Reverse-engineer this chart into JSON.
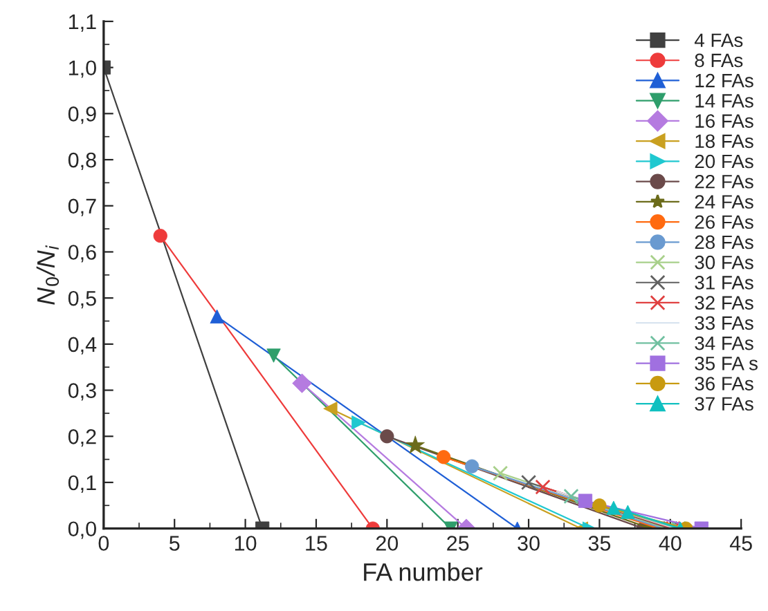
{
  "chart_data": {
    "type": "line",
    "xlabel": "FA number",
    "ylabel": "N$_{0}$/N$_{i}$",
    "xlim": [
      0,
      45
    ],
    "xticks": [
      0,
      5,
      10,
      15,
      20,
      25,
      30,
      35,
      40,
      45
    ],
    "ylim": [
      0,
      1.1
    ],
    "yticks": [
      {
        "value": 0,
        "label": "0,0"
      },
      {
        "value": 0.1,
        "label": "0,1"
      },
      {
        "value": 0.2,
        "label": "0,2"
      },
      {
        "value": 0.3,
        "label": "0,3"
      },
      {
        "value": 0.4,
        "label": "0,4"
      },
      {
        "value": 0.5,
        "label": "0,5"
      },
      {
        "value": 0.6,
        "label": "0,6"
      },
      {
        "value": 0.7,
        "label": "0,7"
      },
      {
        "value": 0.8,
        "label": "0,8"
      },
      {
        "value": 0.9,
        "label": "0,9"
      },
      {
        "value": 1.0,
        "label": "1,0"
      },
      {
        "value": 1.1,
        "label": "1,1"
      }
    ],
    "grid": false,
    "legend": "top right",
    "series": [
      {
        "name": "4 FAs",
        "color": "#404040",
        "marker": "square",
        "x": [
          0,
          11.2
        ],
        "values": [
          1.0,
          0
        ]
      },
      {
        "name": "8 FAs",
        "color": "#ee3b3b",
        "marker": "circle",
        "x": [
          4,
          19.0
        ],
        "values": [
          0.635,
          0
        ]
      },
      {
        "name": "12 FAs",
        "color": "#1f5fd6",
        "marker": "triangle",
        "x": [
          8,
          29.2
        ],
        "values": [
          0.46,
          0
        ]
      },
      {
        "name": "14 FAs",
        "color": "#2e9e6b",
        "marker": "triangle_down",
        "x": [
          12,
          24.5
        ],
        "values": [
          0.375,
          0
        ]
      },
      {
        "name": "16 FAs",
        "color": "#b57be0",
        "marker": "diamond",
        "x": [
          14,
          25.6
        ],
        "values": [
          0.315,
          0
        ]
      },
      {
        "name": "18 FAs",
        "color": "#c9a020",
        "marker": "triangle_left",
        "x": [
          16,
          33.7
        ],
        "values": [
          0.26,
          0
        ]
      },
      {
        "name": "20 FAs",
        "color": "#20c8d0",
        "marker": "triangle_right",
        "x": [
          18,
          34.3
        ],
        "values": [
          0.23,
          0
        ]
      },
      {
        "name": "22 FAs",
        "color": "#6b4a4a",
        "marker": "circle",
        "x": [
          20,
          38.1
        ],
        "values": [
          0.2,
          0
        ]
      },
      {
        "name": "24 FAs",
        "color": "#6b6b1a",
        "marker": "star",
        "x": [
          22,
          38.6
        ],
        "values": [
          0.18,
          0
        ]
      },
      {
        "name": "26 FAs",
        "color": "#ff6a10",
        "marker": "circle",
        "x": [
          24,
          39.2
        ],
        "values": [
          0.155,
          0
        ]
      },
      {
        "name": "28 FAs",
        "color": "#6a9ad0",
        "marker": "circle",
        "x": [
          26,
          39.5
        ],
        "values": [
          0.135,
          0
        ]
      },
      {
        "name": "30 FAs",
        "color": "#a8d08a",
        "marker": "cross",
        "x": [
          28,
          39.8
        ],
        "values": [
          0.12,
          0
        ]
      },
      {
        "name": "31 FAs",
        "color": "#606060",
        "marker": "cross",
        "x": [
          30,
          40.0
        ],
        "values": [
          0.1,
          0
        ]
      },
      {
        "name": "32 FAs",
        "color": "#e04040",
        "marker": "cross",
        "x": [
          31,
          40.2
        ],
        "values": [
          0.09,
          0
        ]
      },
      {
        "name": "33 FAs",
        "color": "#d8e4f0",
        "marker": "none",
        "x": [
          32,
          40.4
        ],
        "values": [
          0.08,
          0
        ]
      },
      {
        "name": "34 FAs",
        "color": "#70c0a0",
        "marker": "cross",
        "x": [
          33,
          40.6
        ],
        "values": [
          0.07,
          0
        ]
      },
      {
        "name": "35 FA s",
        "color": "#a070e0",
        "marker": "square",
        "x": [
          34,
          42.2
        ],
        "values": [
          0.06,
          0
        ]
      },
      {
        "name": "36 FAs",
        "color": "#c89a10",
        "marker": "circle",
        "x": [
          35,
          41.1
        ],
        "values": [
          0.05,
          0
        ]
      },
      {
        "name": "37 FAs",
        "color": "#10c0c0",
        "marker": "triangle",
        "x": [
          36,
          37,
          40.7
        ],
        "values": [
          0.045,
          0.036,
          0
        ]
      }
    ]
  }
}
